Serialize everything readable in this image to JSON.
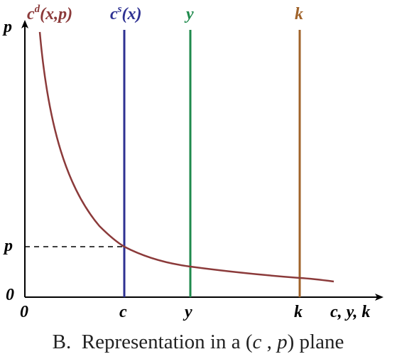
{
  "diagram": {
    "axis_labels": {
      "y": "p",
      "x": "c, y, k"
    },
    "tick_labels": {
      "origin_x": "0",
      "origin_y": "0",
      "p_tick": "p",
      "c_tick": "c",
      "y_tick": "y",
      "k_tick": "k"
    },
    "curves": {
      "demand": {
        "base": "c",
        "sup": "d",
        "args": "(x,p)",
        "color": "#8b3a3a"
      },
      "supply": {
        "base": "c",
        "sup": "s",
        "args": "(x)",
        "color": "#2e3192"
      },
      "y_line": {
        "label": "y",
        "color": "#1f8a4c"
      },
      "k_line": {
        "label": "k",
        "color": "#a0632a"
      }
    },
    "caption": {
      "prefix": "B.  Representation in a (",
      "var1": "c",
      "sep": " , ",
      "var2": "p",
      "suffix": ") plane"
    }
  }
}
